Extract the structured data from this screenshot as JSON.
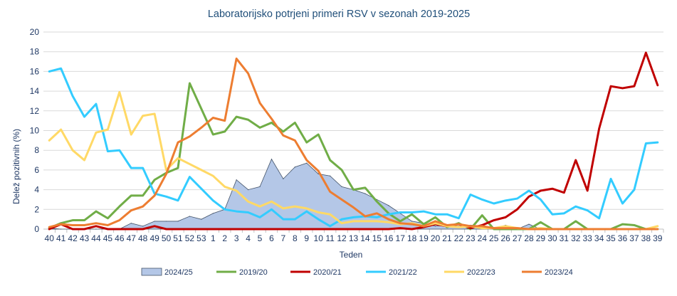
{
  "chart_data": {
    "type": "line",
    "title": "Laboratorijsko potrjeni primeri RSV v sezonah 2019-2025",
    "xlabel": "Teden",
    "ylabel": "Delež pozitivnih  (%)",
    "ylim": [
      0,
      20
    ],
    "yticks": [
      "0",
      "2",
      "4",
      "6",
      "8",
      "10",
      "12",
      "14",
      "16",
      "18",
      "20"
    ],
    "grid": true,
    "legend": "bottom",
    "categories": [
      "40",
      "41",
      "42",
      "43",
      "44",
      "45",
      "46",
      "47",
      "48",
      "49",
      "50",
      "51",
      "52",
      "53",
      "1",
      "2",
      "3",
      "4",
      "5",
      "6",
      "7",
      "8",
      "9",
      "10",
      "11",
      "12",
      "13",
      "14",
      "15",
      "16",
      "17",
      "18",
      "19",
      "20",
      "21",
      "22",
      "23",
      "24",
      "25",
      "26",
      "27",
      "28",
      "29",
      "30",
      "31",
      "32",
      "33",
      "34",
      "35",
      "36",
      "37",
      "38",
      "39"
    ],
    "series": [
      {
        "name": "2024/25",
        "kind": "area",
        "color": "#b4c7e7",
        "stroke": "#44546a",
        "values": [
          0.1,
          0,
          0,
          0,
          0,
          0,
          0,
          0.6,
          0.3,
          0.8,
          0.8,
          0.8,
          1.3,
          1.0,
          1.6,
          2.0,
          5.0,
          4.0,
          4.3,
          7.1,
          5.1,
          6.3,
          6.7,
          5.6,
          5.4,
          4.3,
          4.0,
          3.6,
          3.0,
          2.4,
          1.6,
          0.8,
          0.6,
          0.3,
          0.4,
          0.3,
          0.4,
          0.3,
          0,
          0.4,
          0,
          0.5,
          0,
          null,
          null,
          null,
          null,
          null,
          null,
          null,
          null,
          null,
          null
        ]
      },
      {
        "name": "2019/20",
        "kind": "line",
        "color": "#70ad47",
        "values": [
          0.1,
          0.6,
          0.9,
          0.9,
          1.8,
          1.1,
          2.3,
          3.4,
          3.4,
          5.0,
          5.7,
          6.2,
          14.8,
          12.2,
          9.6,
          9.9,
          11.4,
          11.1,
          10.3,
          10.8,
          9.9,
          10.8,
          8.8,
          9.6,
          7.0,
          6.0,
          4.0,
          4.2,
          2.8,
          1.6,
          0.8,
          1.5,
          0.5,
          1.2,
          0.2,
          0.6,
          0,
          1.4,
          0,
          0,
          0,
          0,
          0.7,
          0,
          0,
          0.8,
          0,
          0,
          0,
          0.5,
          0.4,
          0,
          0
        ]
      },
      {
        "name": "2020/21",
        "kind": "line",
        "color": "#c00000",
        "values": [
          0,
          0.5,
          0,
          0,
          0.3,
          0,
          0,
          0,
          0,
          0.3,
          0,
          0,
          0,
          0,
          0,
          0,
          0,
          0,
          0,
          0,
          0,
          0,
          0,
          0,
          0,
          0,
          0,
          0,
          0,
          0,
          0.1,
          0,
          0.2,
          0.5,
          0.3,
          0.5,
          0.1,
          0.4,
          0.9,
          1.2,
          2.0,
          3.3,
          3.9,
          4.1,
          3.7,
          7.0,
          3.9,
          10.2,
          14.5,
          14.3,
          14.5,
          17.9,
          14.6
        ]
      },
      {
        "name": "2021/22",
        "kind": "line",
        "color": "#33ccff",
        "values": [
          16.0,
          16.3,
          13.5,
          11.4,
          12.7,
          7.9,
          8.0,
          6.2,
          6.2,
          3.6,
          3.3,
          2.9,
          5.3,
          4.1,
          2.9,
          2.0,
          1.8,
          1.7,
          1.2,
          2.0,
          1.0,
          1.0,
          1.8,
          1.0,
          0.3,
          1.0,
          1.2,
          1.3,
          1.2,
          1.5,
          1.7,
          1.7,
          1.8,
          1.5,
          1.5,
          1.1,
          3.5,
          3.0,
          2.6,
          2.9,
          3.1,
          3.9,
          3.0,
          1.5,
          1.6,
          2.3,
          1.9,
          1.1,
          5.1,
          2.6,
          4.0,
          8.7,
          8.8
        ]
      },
      {
        "name": "2022/23",
        "kind": "line",
        "color": "#ffd966",
        "values": [
          9.0,
          10.1,
          8.0,
          7.0,
          9.8,
          10.1,
          13.9,
          9.6,
          11.5,
          11.7,
          6.0,
          7.2,
          6.6,
          6.0,
          5.4,
          4.3,
          3.9,
          2.8,
          2.3,
          2.8,
          2.1,
          2.3,
          2.1,
          1.7,
          1.5,
          0.6,
          0.8,
          0.8,
          0.8,
          0.7,
          0.5,
          0.6,
          0.3,
          0.6,
          0.3,
          0.2,
          0.3,
          0.1,
          0.1,
          0.3,
          0.1,
          0,
          0.1,
          0,
          0,
          0,
          0,
          0,
          0,
          0,
          0,
          0,
          0.3
        ]
      },
      {
        "name": "2023/24",
        "kind": "line",
        "color": "#ed7d31",
        "values": [
          0.2,
          0.5,
          0.4,
          0.4,
          0.6,
          0.4,
          0.9,
          1.9,
          2.3,
          3.4,
          5.6,
          8.8,
          9.4,
          10.3,
          11.3,
          11.0,
          17.3,
          15.8,
          12.8,
          11.2,
          9.5,
          9.0,
          7.0,
          5.9,
          3.8,
          3.0,
          2.2,
          1.3,
          1.6,
          1.0,
          0.6,
          0.5,
          0.3,
          0.8,
          0.4,
          0.5,
          0.3,
          0.3,
          0.1,
          0.1,
          0.1,
          0,
          0,
          0,
          0,
          0,
          0,
          0,
          0,
          0,
          0,
          0,
          0
        ]
      }
    ]
  }
}
